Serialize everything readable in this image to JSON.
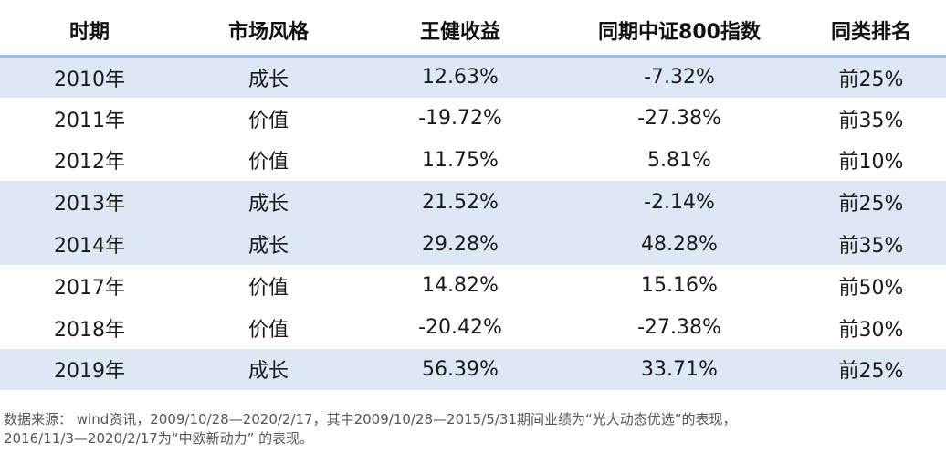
{
  "table": {
    "headers": [
      "时期",
      "市场风格",
      "王健收益",
      "同期中证800指数",
      "同类排名"
    ],
    "rows": [
      [
        "2010年",
        "成长",
        "12.63%",
        "-7.32%",
        "前25%"
      ],
      [
        "2011年",
        "价值",
        "-19.72%",
        "-27.38%",
        "前35%"
      ],
      [
        "2012年",
        "价值",
        "11.75%",
        "5.81%",
        "前10%"
      ],
      [
        "2013年",
        "成长",
        "21.52%",
        "-2.14%",
        "前25%"
      ],
      [
        "2014年",
        "成长",
        "29.28%",
        "48.28%",
        "前35%"
      ],
      [
        "2017年",
        "价值",
        "14.82%",
        "15.16%",
        "前50%"
      ],
      [
        "2018年",
        "价值",
        "-20.42%",
        "-27.38%",
        "前30%"
      ],
      [
        "2019年",
        "成长",
        "56.39%",
        "33.71%",
        "前25%"
      ]
    ],
    "shaded_rows": [
      0,
      3,
      4,
      7
    ],
    "colors": {
      "header_rule": "#9dc1e6",
      "row_shade": "#dde8f4"
    }
  },
  "footnote": {
    "line1": "数据来源： wind资讯，2009/10/28—2020/2/17，其中2009/10/28—2015/5/31期间业绩为“光大动态优选”的表现，",
    "line2": "2016/11/3—2020/2/17为“中欧新动力” 的表现。"
  }
}
